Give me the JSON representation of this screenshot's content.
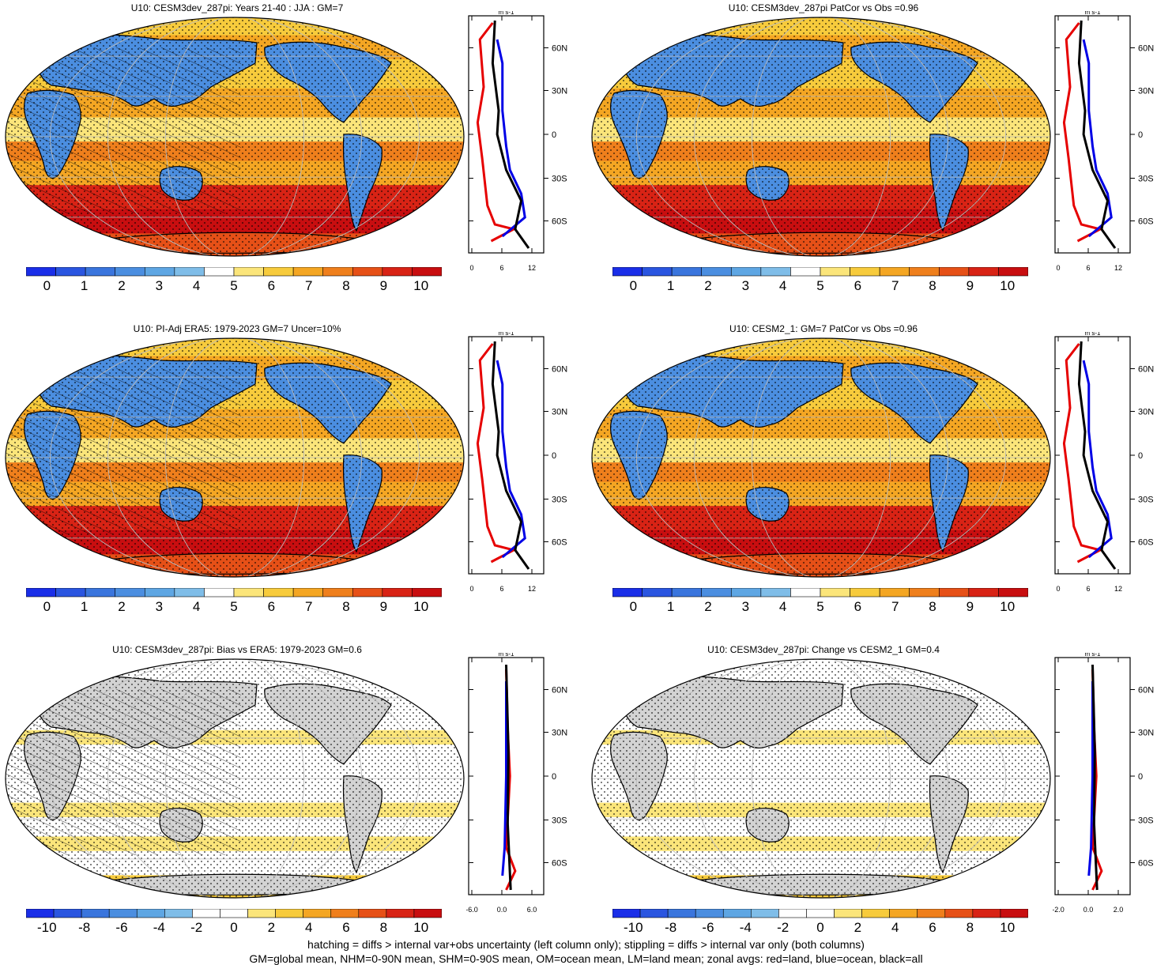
{
  "panels": [
    {
      "title": "U10: CESM3dev_287pi: Years 21-40 : JJA : GM=7",
      "kind": "abs",
      "hatch": true,
      "cbar_ticks": [
        "0",
        "1",
        "2",
        "3",
        "4",
        "5",
        "6",
        "7",
        "8",
        "9",
        "10"
      ],
      "zonal_ticks": [
        "0",
        "6",
        "12"
      ],
      "zonal_unit": "m s-1",
      "lat_labels": [
        "60N",
        "30N",
        "0",
        "30S",
        "60S"
      ]
    },
    {
      "title": "U10: CESM3dev_287pi PatCor vs Obs =0.96",
      "kind": "abs",
      "hatch": false,
      "cbar_ticks": [
        "0",
        "1",
        "2",
        "3",
        "4",
        "5",
        "6",
        "7",
        "8",
        "9",
        "10"
      ],
      "zonal_ticks": [
        "0",
        "6",
        "12"
      ],
      "zonal_unit": "m s-1",
      "lat_labels": [
        "60N",
        "30N",
        "0",
        "30S",
        "60S"
      ]
    },
    {
      "title": "U10: PI-Adj ERA5: 1979-2023 GM=7 Uncer=10%",
      "kind": "abs",
      "hatch": true,
      "cbar_ticks": [
        "0",
        "1",
        "2",
        "3",
        "4",
        "5",
        "6",
        "7",
        "8",
        "9",
        "10"
      ],
      "zonal_ticks": [
        "0",
        "6",
        "12"
      ],
      "zonal_unit": "m s-1",
      "lat_labels": [
        "60N",
        "30N",
        "0",
        "30S",
        "60S"
      ]
    },
    {
      "title": "U10: CESM2_1: GM=7 PatCor vs Obs =0.96",
      "kind": "abs",
      "hatch": false,
      "cbar_ticks": [
        "0",
        "1",
        "2",
        "3",
        "4",
        "5",
        "6",
        "7",
        "8",
        "9",
        "10"
      ],
      "zonal_ticks": [
        "0",
        "6",
        "12"
      ],
      "zonal_unit": "m s-1",
      "lat_labels": [
        "60N",
        "30N",
        "0",
        "30S",
        "60S"
      ]
    },
    {
      "title": "U10: CESM3dev_287pi: Bias vs ERA5: 1979-2023 GM=0.6",
      "kind": "diff",
      "hatch": true,
      "cbar_ticks": [
        "-10",
        "-8",
        "-6",
        "-4",
        "-2",
        "0",
        "2",
        "4",
        "6",
        "8",
        "10"
      ],
      "zonal_ticks": [
        "-6.0",
        "0.0",
        "6.0"
      ],
      "zonal_unit": "m s-1",
      "lat_labels": [
        "60N",
        "30N",
        "0",
        "30S",
        "60S"
      ]
    },
    {
      "title": "U10: CESM3dev_287pi: Change vs CESM2_1 GM=0.4",
      "kind": "diff",
      "hatch": false,
      "cbar_ticks": [
        "-10",
        "-8",
        "-6",
        "-4",
        "-2",
        "0",
        "2",
        "4",
        "6",
        "8",
        "10"
      ],
      "zonal_ticks": [
        "-2.0",
        "0.0",
        "2.0"
      ],
      "zonal_unit": "m s-1",
      "lat_labels": [
        "60N",
        "30N",
        "0",
        "30S",
        "60S"
      ]
    }
  ],
  "colors": {
    "abs_scale": [
      "#1a2ee8",
      "#2a55e0",
      "#3a75dd",
      "#4b8ee0",
      "#5ea6e3",
      "#7fbde8",
      "#ffffff",
      "#fbe57a",
      "#f7cb3c",
      "#f4a623",
      "#ef7f1c",
      "#e65017",
      "#d82315",
      "#c80e10"
    ],
    "diff_scale": [
      "#1a2ee8",
      "#2a55e0",
      "#3a75dd",
      "#4b8ee0",
      "#5ea6e3",
      "#7fbde8",
      "#ffffff",
      "#ffffff",
      "#fbe57a",
      "#f7cb3c",
      "#f4a623",
      "#ef7f1c",
      "#e65017",
      "#d82315",
      "#c80e10"
    ],
    "land_line": "#e60000",
    "ocean_line": "#0000e6",
    "all_line": "#000000",
    "land_gray": "#d3d3d3"
  },
  "footer": {
    "line1": "hatching = diffs > internal var+obs uncertainty (left column only); stippling = diffs > internal var only (both columns)",
    "line2": "GM=global mean, NHM=0-90N mean, SHM=0-90S mean, OM=ocean mean, LM=land mean; zonal avgs: red=land, blue=ocean, black=all"
  }
}
